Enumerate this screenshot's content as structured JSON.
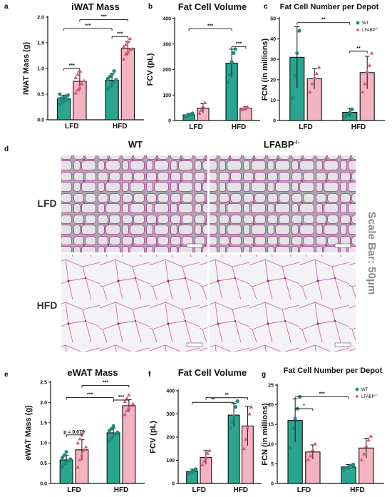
{
  "colors": {
    "wt_fill": "#2aa58f",
    "wt_point": "#1f8c78",
    "ko_fill": "#f4b3c3",
    "ko_point": "#d9577f",
    "axis": "#111111",
    "hfd_bg": "#f3f1f3",
    "lfd_bg": "#dcd9de",
    "membrane": "#c04c9a"
  },
  "legend": {
    "wt": "WT",
    "ko": "LFABP",
    "ko_sup": "-/-"
  },
  "histology": {
    "letter": "d",
    "col_wt": "WT",
    "col_ko": "LFABP",
    "col_ko_sup": "-/-",
    "row_lfd": "LFD",
    "row_hfd": "HFD",
    "scale_label": "Scale Bar: 50μm"
  },
  "chart_data": [
    {
      "type": "bar",
      "letter": "a",
      "title": "iWAT Mass",
      "ylabel": "iWAT Mass (g)",
      "ylim": [
        0,
        2.0
      ],
      "yticks": [
        "0.0",
        "0.5",
        "1.0",
        "1.5",
        "2.0"
      ],
      "yticks_num": [
        0,
        0.5,
        1.0,
        1.5,
        2.0
      ],
      "categories": [
        "LFD",
        "HFD"
      ],
      "legend": false,
      "series": [
        {
          "key": "wt",
          "values": [
            0.41,
            0.77
          ],
          "err": [
            0.07,
            0.13
          ],
          "points": [
            [
              0.3,
              0.34,
              0.36,
              0.38,
              0.4,
              0.41,
              0.42,
              0.44,
              0.46,
              0.48,
              0.5
            ],
            [
              0.6,
              0.64,
              0.7,
              0.74,
              0.78,
              0.8,
              0.84,
              0.88,
              0.95
            ]
          ]
        },
        {
          "key": "ko",
          "values": [
            0.75,
            1.39
          ],
          "err": [
            0.18,
            0.13
          ],
          "points": [
            [
              0.52,
              0.58,
              0.62,
              0.7,
              0.76,
              0.82,
              0.88,
              0.95
            ],
            [
              1.18,
              1.28,
              1.32,
              1.36,
              1.38,
              1.42,
              1.46,
              1.52,
              1.58
            ]
          ]
        }
      ],
      "sig": [
        {
          "from": [
            0,
            0
          ],
          "to": [
            1,
            0
          ],
          "y": 1.78,
          "label": "***"
        },
        {
          "from": [
            0,
            0
          ],
          "to": [
            0,
            1
          ],
          "y": 1.0,
          "label": "***"
        },
        {
          "from": [
            1,
            0
          ],
          "to": [
            1,
            1
          ],
          "y": 1.62,
          "label": "***"
        },
        {
          "from": [
            0,
            1
          ],
          "to": [
            1,
            1
          ],
          "y": 1.95,
          "label": "***"
        }
      ]
    },
    {
      "type": "bar",
      "letter": "b",
      "title": "Fat Cell Volume",
      "ylabel": "FCV (pL)",
      "ylim": [
        0,
        400
      ],
      "yticks": [
        "0",
        "100",
        "200",
        "300",
        "400"
      ],
      "yticks_num": [
        0,
        100,
        200,
        300,
        400
      ],
      "categories": [
        "LFD",
        "HFD"
      ],
      "legend": false,
      "series": [
        {
          "key": "wt",
          "values": [
            22,
            225
          ],
          "err": [
            6,
            55
          ],
          "points": [
            [
              15,
              18,
              22,
              25,
              28
            ],
            [
              150,
              180,
              230,
              265,
              280
            ]
          ]
        },
        {
          "key": "ko",
          "values": [
            48,
            48
          ],
          "err": [
            18,
            6
          ],
          "points": [
            [
              28,
              40,
              55,
              70
            ],
            [
              42,
              45,
              50,
              52
            ]
          ]
        }
      ],
      "sig": [
        {
          "from": [
            0,
            0
          ],
          "to": [
            1,
            0
          ],
          "y": 360,
          "label": "***"
        },
        {
          "from": [
            1,
            0
          ],
          "to": [
            1,
            1
          ],
          "y": 290,
          "label": "***"
        }
      ]
    },
    {
      "type": "bar",
      "letter": "c",
      "title": "Fat Cell Number per Depot",
      "ylabel": "FCN (in millions)",
      "ylim": [
        0,
        50
      ],
      "yticks": [
        "0",
        "10",
        "20",
        "30",
        "40",
        "50"
      ],
      "yticks_num": [
        0,
        10,
        20,
        30,
        40,
        50
      ],
      "categories": [
        "LFD",
        "HFD"
      ],
      "legend": true,
      "series": [
        {
          "key": "wt",
          "values": [
            31,
            4
          ],
          "err": [
            15,
            2
          ],
          "points": [
            [
              11,
              22,
              33,
              44
            ],
            [
              2,
              3,
              4,
              5.5
            ]
          ]
        },
        {
          "key": "ko",
          "values": [
            20.5,
            23.5
          ],
          "err": [
            5,
            8
          ],
          "points": [
            [
              14,
              18,
              21,
              23,
              26
            ],
            [
              14,
              18,
              24,
              27,
              33
            ]
          ]
        }
      ],
      "sig": [
        {
          "from": [
            0,
            0
          ],
          "to": [
            1,
            0
          ],
          "y": 48,
          "label": "**"
        },
        {
          "from": [
            1,
            0
          ],
          "to": [
            1,
            1
          ],
          "y": 34,
          "label": "**"
        }
      ]
    },
    {
      "type": "bar",
      "letter": "e",
      "title": "eWAT Mass",
      "ylabel": "eWAT Mass (g)",
      "ylim": [
        0,
        2.5
      ],
      "yticks": [
        "0.0",
        "0.5",
        "1.0",
        "1.5",
        "2.0",
        "2.5"
      ],
      "yticks_num": [
        0,
        0.5,
        1.0,
        1.5,
        2.0,
        2.5
      ],
      "categories": [
        "LFD",
        "HFD"
      ],
      "legend": false,
      "series": [
        {
          "key": "wt",
          "values": [
            0.58,
            1.25
          ],
          "err": [
            0.12,
            0.12
          ],
          "points": [
            [
              0.4,
              0.48,
              0.52,
              0.56,
              0.6,
              0.64,
              0.7,
              0.78
            ],
            [
              1.05,
              1.12,
              1.18,
              1.22,
              1.26,
              1.3,
              1.35,
              1.42
            ]
          ]
        },
        {
          "key": "ko",
          "values": [
            0.83,
            1.92
          ],
          "err": [
            0.25,
            0.15
          ],
          "points": [
            [
              0.4,
              0.58,
              0.7,
              0.82,
              0.9,
              1.0,
              1.1,
              1.22
            ],
            [
              1.7,
              1.8,
              1.86,
              1.92,
              1.96,
              2.02,
              2.1,
              2.18
            ]
          ]
        }
      ],
      "sig": [
        {
          "from": [
            0,
            0
          ],
          "to": [
            0,
            1
          ],
          "y": 1.2,
          "label": "p = 0.079"
        },
        {
          "from": [
            0,
            0
          ],
          "to": [
            1,
            0
          ],
          "y": 2.12,
          "label": "***"
        },
        {
          "from": [
            1,
            0
          ],
          "to": [
            1,
            1
          ],
          "y": 2.06,
          "label": "***"
        },
        {
          "from": [
            0,
            1
          ],
          "to": [
            1,
            1
          ],
          "y": 2.42,
          "label": "***"
        }
      ]
    },
    {
      "type": "bar",
      "letter": "f",
      "title": "Fat Cell Volume",
      "ylabel": "FCV (pL)",
      "ylim": [
        0,
        400
      ],
      "yticks": [
        "0",
        "100",
        "200",
        "300",
        "400"
      ],
      "yticks_num": [
        0,
        100,
        200,
        300,
        400
      ],
      "categories": [
        "LFD",
        "HFD"
      ],
      "legend": false,
      "series": [
        {
          "key": "wt",
          "values": [
            52,
            295
          ],
          "err": [
            10,
            50
          ],
          "points": [
            [
              42,
              48,
              52,
              56,
              62
            ],
            [
              240,
              265,
              290,
              330,
              355
            ]
          ]
        },
        {
          "key": "ko",
          "values": [
            112,
            248
          ],
          "err": [
            30,
            85
          ],
          "points": [
            [
              80,
              95,
              112,
              130,
              142
            ],
            [
              150,
              190,
              240,
              300,
              330
            ]
          ]
        }
      ],
      "sig": [
        {
          "from": [
            0,
            0
          ],
          "to": [
            1,
            0
          ],
          "y": 350,
          "label": "**"
        },
        {
          "from": [
            0,
            1
          ],
          "to": [
            1,
            1
          ],
          "y": 370,
          "label": "**"
        }
      ]
    },
    {
      "type": "bar",
      "letter": "g",
      "title": "Fat Cell Number per Depot",
      "ylabel": "FCN (in millions)",
      "ylim": [
        0,
        25
      ],
      "yticks": [
        "0",
        "5",
        "10",
        "15",
        "20",
        "25"
      ],
      "yticks_num": [
        0,
        5,
        10,
        15,
        20,
        25
      ],
      "categories": [
        "LFD",
        "HFD"
      ],
      "legend": true,
      "series": [
        {
          "key": "wt",
          "values": [
            16,
            4.2
          ],
          "err": [
            5.5,
            0.6
          ],
          "points": [
            [
              9,
              14,
              16.5,
              19,
              22
            ],
            [
              3.6,
              4.0,
              4.2,
              4.5,
              4.8
            ]
          ]
        },
        {
          "key": "ko",
          "values": [
            8,
            9
          ],
          "err": [
            1.8,
            2.5
          ],
          "points": [
            [
              6,
              7,
              8.5,
              10
            ],
            [
              6,
              7.5,
              9.5,
              11,
              12
            ]
          ]
        }
      ],
      "sig": [
        {
          "from": [
            0,
            0
          ],
          "to": [
            0,
            1
          ],
          "y": 19,
          "label": "*"
        },
        {
          "from": [
            0,
            0
          ],
          "to": [
            1,
            0
          ],
          "y": 22,
          "label": "***"
        }
      ]
    }
  ]
}
